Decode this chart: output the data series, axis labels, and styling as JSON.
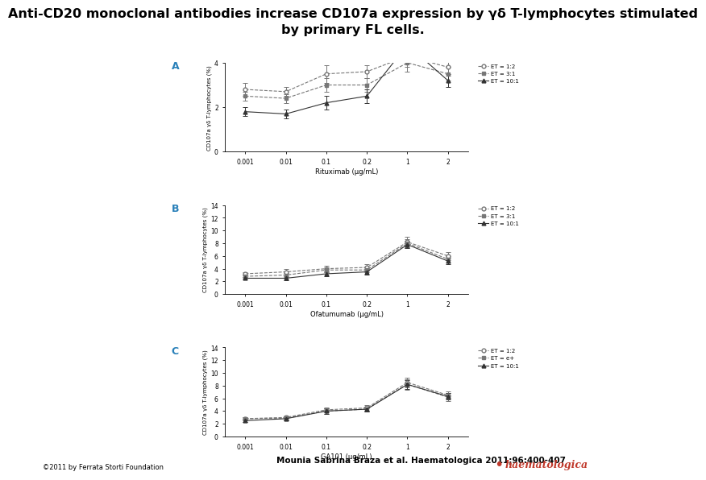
{
  "title_line1": "Anti-CD20 monoclonal antibodies increase CD107a expression by γδ T-lymphocytes stimulated",
  "title_line2": "by primary FL cells.",
  "title_fontsize": 11.5,
  "panel_A": {
    "label": "A",
    "xlabel": "Rituximab (μg/mL)",
    "ylabel": "CD107a γδ T-lymphocytes (%)",
    "xticklabels": [
      "0.001",
      "0.01",
      "0.1",
      "0.2",
      "1",
      "2"
    ],
    "ylim": [
      0,
      4
    ],
    "series": [
      {
        "label": "ET = 1:2",
        "marker": "o",
        "marker_fill": "white",
        "color": "#777777",
        "linestyle": "--",
        "y": [
          2.8,
          2.7,
          3.5,
          3.6,
          4.3,
          3.8
        ],
        "yerr": [
          0.3,
          0.2,
          0.4,
          0.3,
          0.5,
          0.4
        ]
      },
      {
        "label": "ET = 3:1",
        "marker": "s",
        "marker_fill": "#777777",
        "color": "#777777",
        "linestyle": "--",
        "y": [
          2.5,
          2.4,
          3.0,
          3.0,
          4.0,
          3.5
        ],
        "yerr": [
          0.2,
          0.2,
          0.3,
          0.3,
          0.4,
          0.3
        ]
      },
      {
        "label": "ET = 10:1",
        "marker": "^",
        "marker_fill": "#333333",
        "color": "#333333",
        "linestyle": "-",
        "y": [
          1.8,
          1.7,
          2.2,
          2.5,
          4.8,
          3.2
        ],
        "yerr": [
          0.2,
          0.2,
          0.3,
          0.3,
          0.6,
          0.3
        ]
      }
    ]
  },
  "panel_B": {
    "label": "B",
    "xlabel": "Ofatumumab (μg/mL)",
    "ylabel": "CD107a γδ T-lymphocytes (%)",
    "xticklabels": [
      "0.001",
      "0.01",
      "0.1",
      "0.2",
      "1",
      "2"
    ],
    "ylim": [
      0,
      14
    ],
    "series": [
      {
        "label": "ET = 1:2",
        "marker": "o",
        "marker_fill": "white",
        "color": "#777777",
        "linestyle": "--",
        "y": [
          3.2,
          3.5,
          4.0,
          4.2,
          8.2,
          6.0
        ],
        "yerr": [
          0.3,
          0.4,
          0.5,
          0.5,
          0.8,
          0.6
        ]
      },
      {
        "label": "ET = 3:1",
        "marker": "s",
        "marker_fill": "#777777",
        "color": "#777777",
        "linestyle": "--",
        "y": [
          2.8,
          3.0,
          3.8,
          3.8,
          8.0,
          5.5
        ],
        "yerr": [
          0.3,
          0.3,
          0.4,
          0.4,
          0.7,
          0.5
        ]
      },
      {
        "label": "ET = 10:1",
        "marker": "^",
        "marker_fill": "#333333",
        "color": "#333333",
        "linestyle": "-",
        "y": [
          2.5,
          2.5,
          3.2,
          3.5,
          7.8,
          5.2
        ],
        "yerr": [
          0.2,
          0.3,
          0.4,
          0.4,
          0.6,
          0.5
        ]
      }
    ]
  },
  "panel_C": {
    "label": "C",
    "xlabel": "GA101 (μg/mL)",
    "ylabel": "CD107a γδ T-lymphocytes (%)",
    "xticklabels": [
      "0.001",
      "0.01",
      "0.1",
      "0.2",
      "1",
      "2"
    ],
    "ylim": [
      0,
      14
    ],
    "series": [
      {
        "label": "ET = 1:2",
        "marker": "o",
        "marker_fill": "white",
        "color": "#777777",
        "linestyle": "--",
        "y": [
          2.8,
          3.0,
          4.2,
          4.5,
          8.5,
          6.5
        ],
        "yerr": [
          0.3,
          0.3,
          0.4,
          0.4,
          0.8,
          0.6
        ]
      },
      {
        "label": "ET = e+",
        "marker": "s",
        "marker_fill": "#777777",
        "color": "#777777",
        "linestyle": "--",
        "y": [
          2.8,
          2.9,
          4.0,
          4.3,
          8.2,
          6.2
        ],
        "yerr": [
          0.3,
          0.3,
          0.4,
          0.4,
          0.8,
          0.6
        ]
      },
      {
        "label": "ET = 10:1",
        "marker": "^",
        "marker_fill": "#333333",
        "color": "#333333",
        "linestyle": "-",
        "y": [
          2.5,
          2.8,
          4.0,
          4.3,
          8.2,
          6.3
        ],
        "yerr": [
          0.25,
          0.3,
          0.4,
          0.4,
          0.7,
          0.5
        ]
      }
    ]
  },
  "citation": "Mounia Sabrina Braza et al. Haematologica 2011;96:400-407",
  "copyright": "©2011 by Ferrata Storti Foundation",
  "bg_color": "#ffffff",
  "haematologica_color": "#c0392b",
  "label_color": "#2980b9"
}
